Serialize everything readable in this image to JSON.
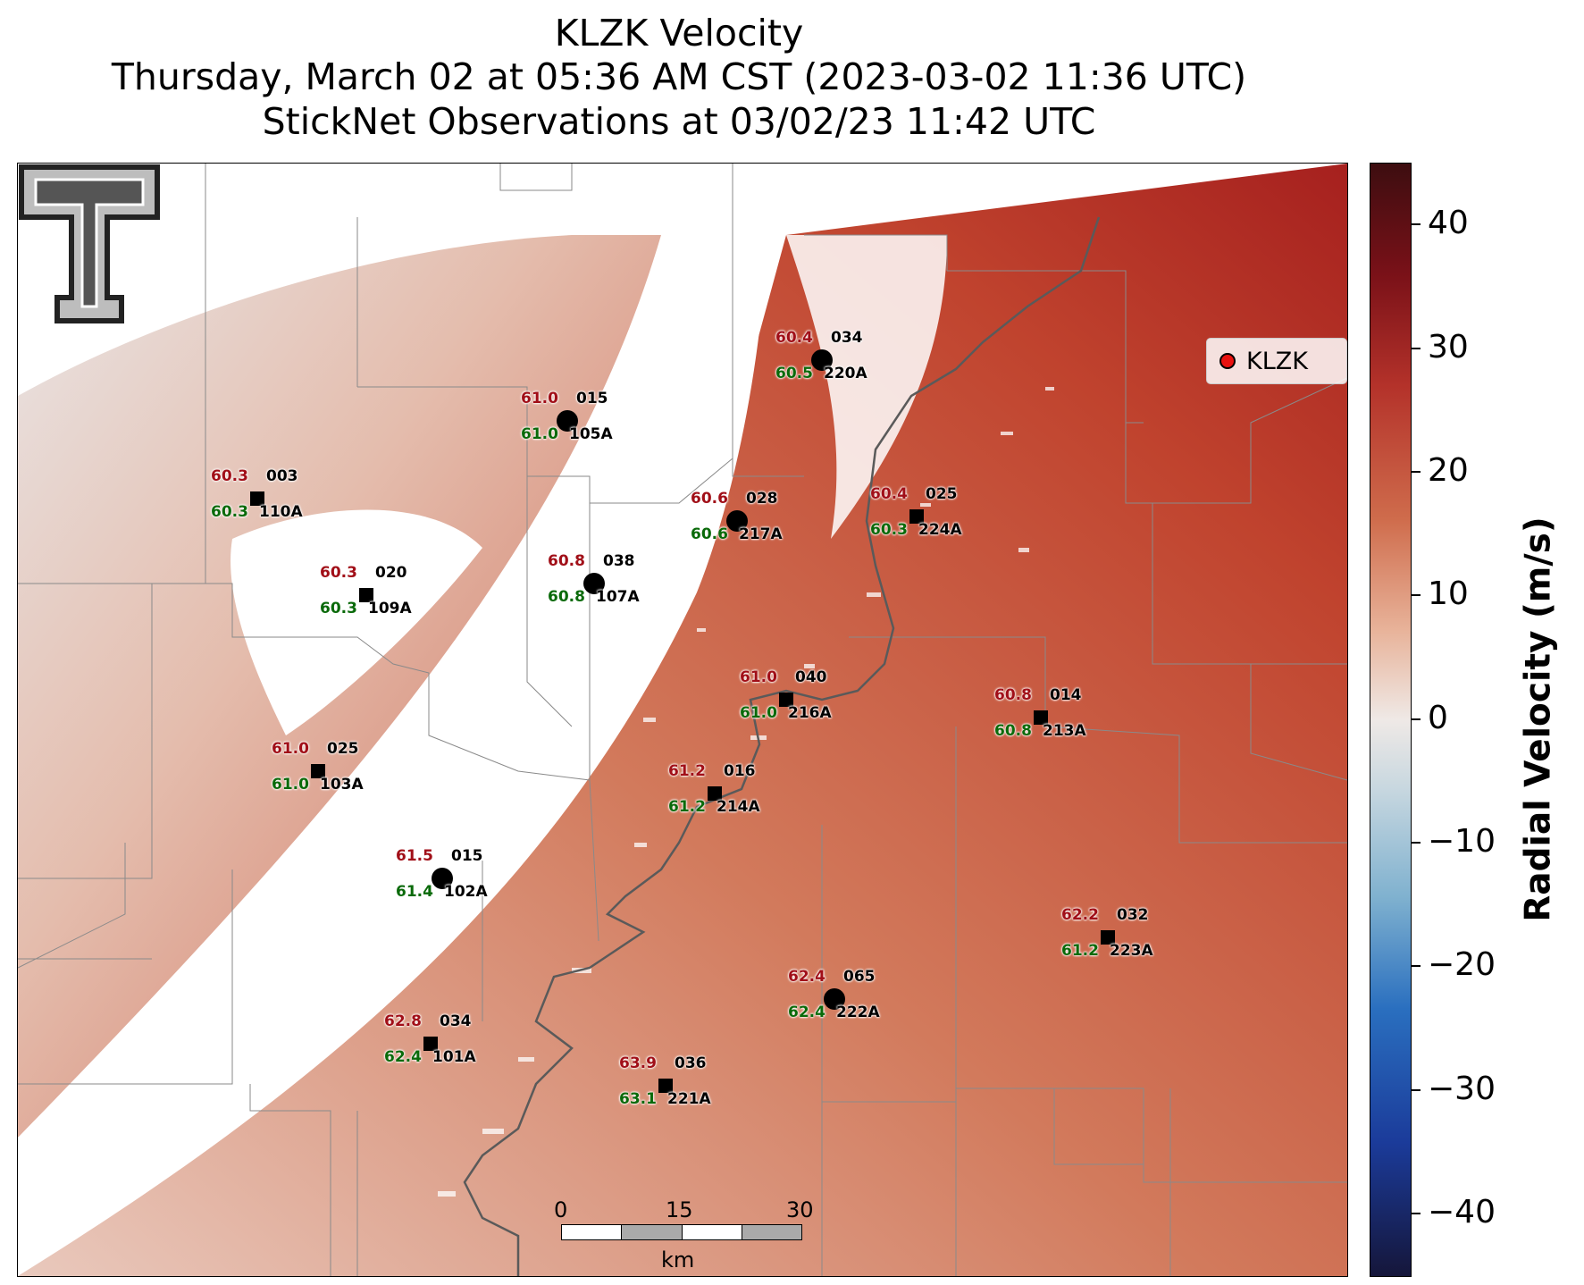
{
  "title": {
    "line1": "KLZK Velocity",
    "line2": "Thursday, March 02 at 05:36 AM CST (2023-03-02 11:36 UTC)",
    "line3": "StickNet Observations at 03/02/23 11:42 UTC"
  },
  "legend": {
    "label": "KLZK",
    "marker_color": "#e8110f"
  },
  "colorbar": {
    "title": "Radial Velocity (m/s)",
    "ticks": [
      "40",
      "30",
      "20",
      "10",
      "0",
      "−10",
      "−20",
      "−30",
      "−40"
    ],
    "range": [
      -45,
      45
    ]
  },
  "scalebar": {
    "labels": [
      "0",
      "15",
      "30"
    ],
    "unit": "km"
  },
  "colors": {
    "temp": "#a10f18",
    "dewpoint": "#0a6a0a",
    "outbound": "#c0452d",
    "inbound": "#1b4fa0"
  },
  "stations": [
    {
      "id": "220A",
      "temp": "60.4",
      "dew": "60.5",
      "dir": "034",
      "marker": "circle"
    },
    {
      "id": "105A",
      "temp": "61.0",
      "dew": "61.0",
      "dir": "015",
      "marker": "circle"
    },
    {
      "id": "110A",
      "temp": "60.3",
      "dew": "60.3",
      "dir": "003",
      "marker": "square"
    },
    {
      "id": "217A",
      "temp": "60.6",
      "dew": "60.6",
      "dir": "028",
      "marker": "circle"
    },
    {
      "id": "224A",
      "temp": "60.4",
      "dew": "60.3",
      "dir": "025",
      "marker": "square"
    },
    {
      "id": "107A",
      "temp": "60.8",
      "dew": "60.8",
      "dir": "038",
      "marker": "circle"
    },
    {
      "id": "109A",
      "temp": "60.3",
      "dew": "60.3",
      "dir": "020",
      "marker": "square"
    },
    {
      "id": "216A",
      "temp": "61.0",
      "dew": "61.0",
      "dir": "040",
      "marker": "square"
    },
    {
      "id": "213A",
      "temp": "60.8",
      "dew": "60.8",
      "dir": "014",
      "marker": "square"
    },
    {
      "id": "103A",
      "temp": "61.0",
      "dew": "61.0",
      "dir": "025",
      "marker": "square"
    },
    {
      "id": "214A",
      "temp": "61.2",
      "dew": "61.2",
      "dir": "016",
      "marker": "square"
    },
    {
      "id": "102A",
      "temp": "61.5",
      "dew": "61.4",
      "dir": "015",
      "marker": "circle"
    },
    {
      "id": "223A",
      "temp": "62.2",
      "dew": "61.2",
      "dir": "032",
      "marker": "square"
    },
    {
      "id": "222A",
      "temp": "62.4",
      "dew": "62.4",
      "dir": "065",
      "marker": "circle"
    },
    {
      "id": "101A",
      "temp": "62.8",
      "dew": "62.4",
      "dir": "034",
      "marker": "square"
    },
    {
      "id": "221A",
      "temp": "63.9",
      "dew": "63.1",
      "dir": "036",
      "marker": "square"
    }
  ]
}
